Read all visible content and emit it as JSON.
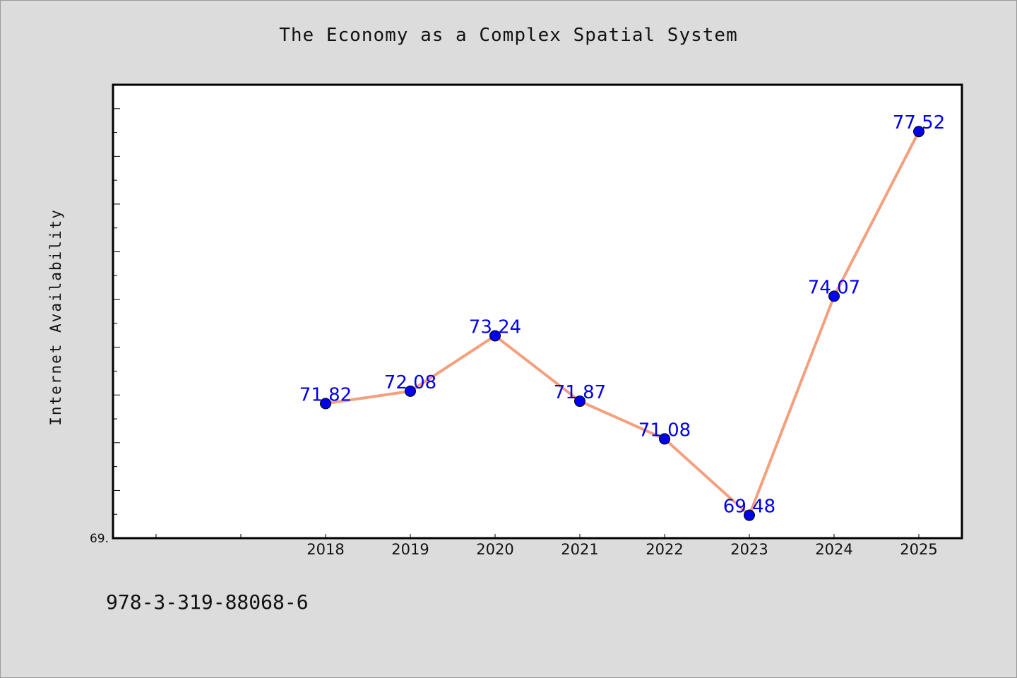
{
  "chart_data": {
    "type": "line",
    "title": "The Economy as a Complex Spatial System",
    "xlabel": "",
    "ylabel": "Internet Availability",
    "categories": [
      "2018",
      "2019",
      "2020",
      "2021",
      "2022",
      "2023",
      "2024",
      "2025"
    ],
    "series": [
      {
        "values": [
          71.82,
          72.08,
          73.24,
          71.87,
          71.08,
          69.48,
          74.07,
          77.52
        ],
        "data_labels": [
          "71.82",
          "72.08",
          "73.24",
          "71.87",
          "71.08",
          "69.48",
          "74.07",
          "77.52"
        ],
        "line_color": "#f4a07e",
        "marker_color": "#0000ee"
      }
    ],
    "ylim": [
      69.0,
      78.5
    ],
    "ytick_labels": [
      "69."
    ],
    "grid": false,
    "legend": "none"
  },
  "footer_text": "978-3-319-88068-6",
  "colors": {
    "background": "#dcdcdc",
    "plot_background": "#ffffff",
    "line": "#f4a07e",
    "marker": "#0000ee",
    "data_label": "#0000ee"
  }
}
